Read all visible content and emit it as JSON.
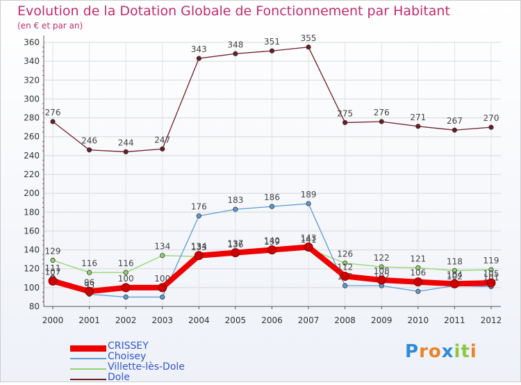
{
  "title": "Evolution de la Dotation Globale de Fonctionnement par Habitant",
  "subtitle": "(en € et par an)",
  "brand": {
    "letters": [
      "P",
      "r",
      "o",
      "x",
      "i",
      "t",
      "i"
    ],
    "colors": [
      "#2e8bd6",
      "#e8842a",
      "#e8842a",
      "#2e8bd6",
      "#8dc63f",
      "#8dc63f",
      "#e8842a"
    ]
  },
  "chart_data": {
    "type": "line",
    "title": "Evolution de la Dotation Globale de Fonctionnement par Habitant",
    "subtitle": "(en € et par an)",
    "xlabel": "",
    "ylabel": "",
    "x": [
      "2000",
      "2001",
      "2002",
      "2003",
      "2004",
      "2005",
      "2006",
      "2007",
      "2008",
      "2009",
      "2010",
      "2011",
      "2012"
    ],
    "ylim": [
      80,
      360
    ],
    "yticks": [
      80,
      100,
      120,
      140,
      160,
      180,
      200,
      220,
      240,
      260,
      280,
      300,
      320,
      340,
      360
    ],
    "grid": true,
    "legend_position": "bottom-left",
    "series": [
      {
        "name": "Dole",
        "color": "#6b1c23",
        "values": [
          276,
          246,
          244,
          247,
          343,
          348,
          351,
          355,
          275,
          276,
          271,
          267,
          270
        ],
        "labels": [
          "276",
          "246",
          "244",
          "247",
          "343",
          "348",
          "351",
          "355",
          "275",
          "276",
          "271",
          "267",
          "270"
        ]
      },
      {
        "name": "Villette-lès-Dole",
        "color": "#8fd46a",
        "values": [
          129,
          116,
          116,
          134,
          133,
          136,
          139,
          141,
          126,
          122,
          121,
          118,
          119
        ],
        "labels": [
          "129",
          "116",
          "116",
          "134",
          "133",
          "136",
          "139",
          "141",
          "126",
          "122",
          "121",
          "118",
          "119"
        ]
      },
      {
        "name": "Choisey",
        "color": "#5b9bd5",
        "values": [
          111,
          93,
          90,
          90,
          176,
          183,
          186,
          189,
          102,
          102,
          96,
          102,
          101
        ],
        "labels": [
          "111",
          "93",
          "",
          "",
          "176",
          "183",
          "186",
          "189",
          "102",
          "102",
          "",
          "102",
          "101"
        ]
      },
      {
        "name": "CRISSEY",
        "color": "#ee0000",
        "values": [
          107,
          96,
          100,
          100,
          134,
          137,
          140,
          143,
          112,
          108,
          106,
          104,
          105
        ],
        "labels": [
          "107",
          "96",
          "100",
          "100",
          "134",
          "137",
          "140",
          "143",
          "112",
          "108",
          "106",
          "104",
          "105"
        ]
      }
    ],
    "legend": [
      {
        "name": "CRISSEY",
        "color": "#ee0000",
        "width": 9
      },
      {
        "name": "Choisey",
        "color": "#5b9bd5",
        "width": 2
      },
      {
        "name": "Villette-lès-Dole",
        "color": "#8fd46a",
        "width": 2
      },
      {
        "name": "Dole",
        "color": "#6b1c23",
        "width": 2
      }
    ]
  }
}
